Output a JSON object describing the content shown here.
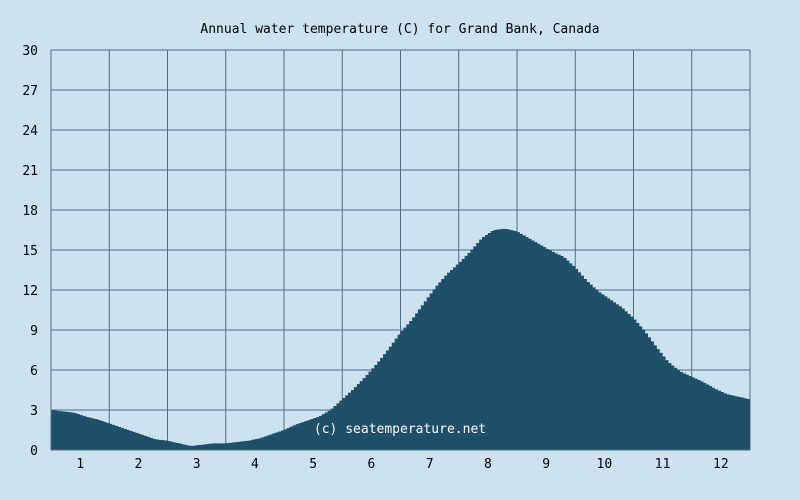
{
  "chart_data": {
    "type": "area",
    "title": "Annual water temperature (C) for Grand Bank, Canada",
    "xlabel": "",
    "ylabel": "",
    "xlim": [
      0.5,
      12.5
    ],
    "ylim": [
      0,
      30
    ],
    "y_ticks": [
      "0",
      "3",
      "6",
      "9",
      "12",
      "15",
      "18",
      "21",
      "24",
      "27",
      "30"
    ],
    "x_ticks": [
      "1",
      "2",
      "3",
      "4",
      "5",
      "6",
      "7",
      "8",
      "9",
      "10",
      "11",
      "12"
    ],
    "grid": true,
    "legend": "none",
    "watermark": "(c) seatemperature.net",
    "colors": {
      "background": "#cce3ef",
      "fill": "#1f4f69",
      "grid": "#4c6f84",
      "text": "#000000"
    },
    "series": [
      {
        "x": [
          0.5,
          0.7,
          0.9,
          1.1,
          1.3,
          1.5,
          1.7,
          1.9,
          2.1,
          2.3,
          2.5,
          2.7,
          2.9,
          3.1,
          3.3,
          3.5,
          3.7,
          3.9,
          4.1,
          4.3,
          4.5,
          4.7,
          4.9,
          5.1,
          5.3,
          5.5,
          5.7,
          5.9,
          6.1,
          6.3,
          6.5,
          6.7,
          6.9,
          7.1,
          7.3,
          7.5,
          7.7,
          7.9,
          8.1,
          8.3,
          8.5,
          8.7,
          8.9,
          9.1,
          9.3,
          9.5,
          9.7,
          9.9,
          10.1,
          10.3,
          10.5,
          10.7,
          10.9,
          11.1,
          11.3,
          11.5,
          11.7,
          11.9,
          12.1,
          12.3,
          12.5
        ],
        "values": [
          3.0,
          2.9,
          2.8,
          2.5,
          2.3,
          2.0,
          1.7,
          1.4,
          1.1,
          0.8,
          0.7,
          0.5,
          0.3,
          0.4,
          0.5,
          0.5,
          0.6,
          0.7,
          0.9,
          1.2,
          1.5,
          1.9,
          2.2,
          2.5,
          3.0,
          3.8,
          4.6,
          5.5,
          6.5,
          7.6,
          8.8,
          9.8,
          11.0,
          12.2,
          13.2,
          14.0,
          14.9,
          15.9,
          16.5,
          16.6,
          16.4,
          15.9,
          15.4,
          14.9,
          14.5,
          13.7,
          12.7,
          11.9,
          11.3,
          10.7,
          9.9,
          8.9,
          7.7,
          6.6,
          5.9,
          5.5,
          5.1,
          4.6,
          4.2,
          4.0,
          3.8
        ]
      }
    ]
  }
}
